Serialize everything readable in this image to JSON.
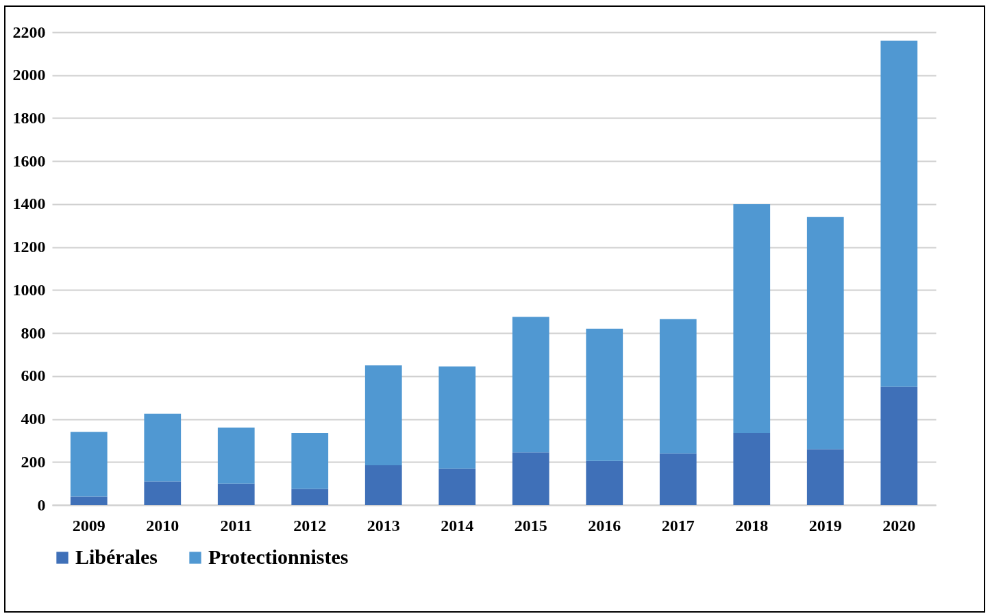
{
  "chart_data": {
    "type": "bar",
    "stacked": true,
    "categories": [
      "2009",
      "2010",
      "2011",
      "2012",
      "2013",
      "2014",
      "2015",
      "2016",
      "2017",
      "2018",
      "2019",
      "2020"
    ],
    "series": [
      {
        "name": "Libérales",
        "color": "#3f70b8",
        "values": [
          40,
          110,
          100,
          75,
          185,
          170,
          245,
          205,
          240,
          335,
          260,
          550
        ]
      },
      {
        "name": "Protectionnistes",
        "color": "#5098d2",
        "values": [
          300,
          315,
          260,
          260,
          465,
          475,
          630,
          615,
          625,
          1065,
          1080,
          1610
        ]
      }
    ],
    "ylim": [
      0,
      2200
    ],
    "yticks": [
      0,
      200,
      400,
      600,
      800,
      1000,
      1200,
      1400,
      1600,
      1800,
      2000,
      2200
    ],
    "grid": "y",
    "legend": "bottom"
  }
}
